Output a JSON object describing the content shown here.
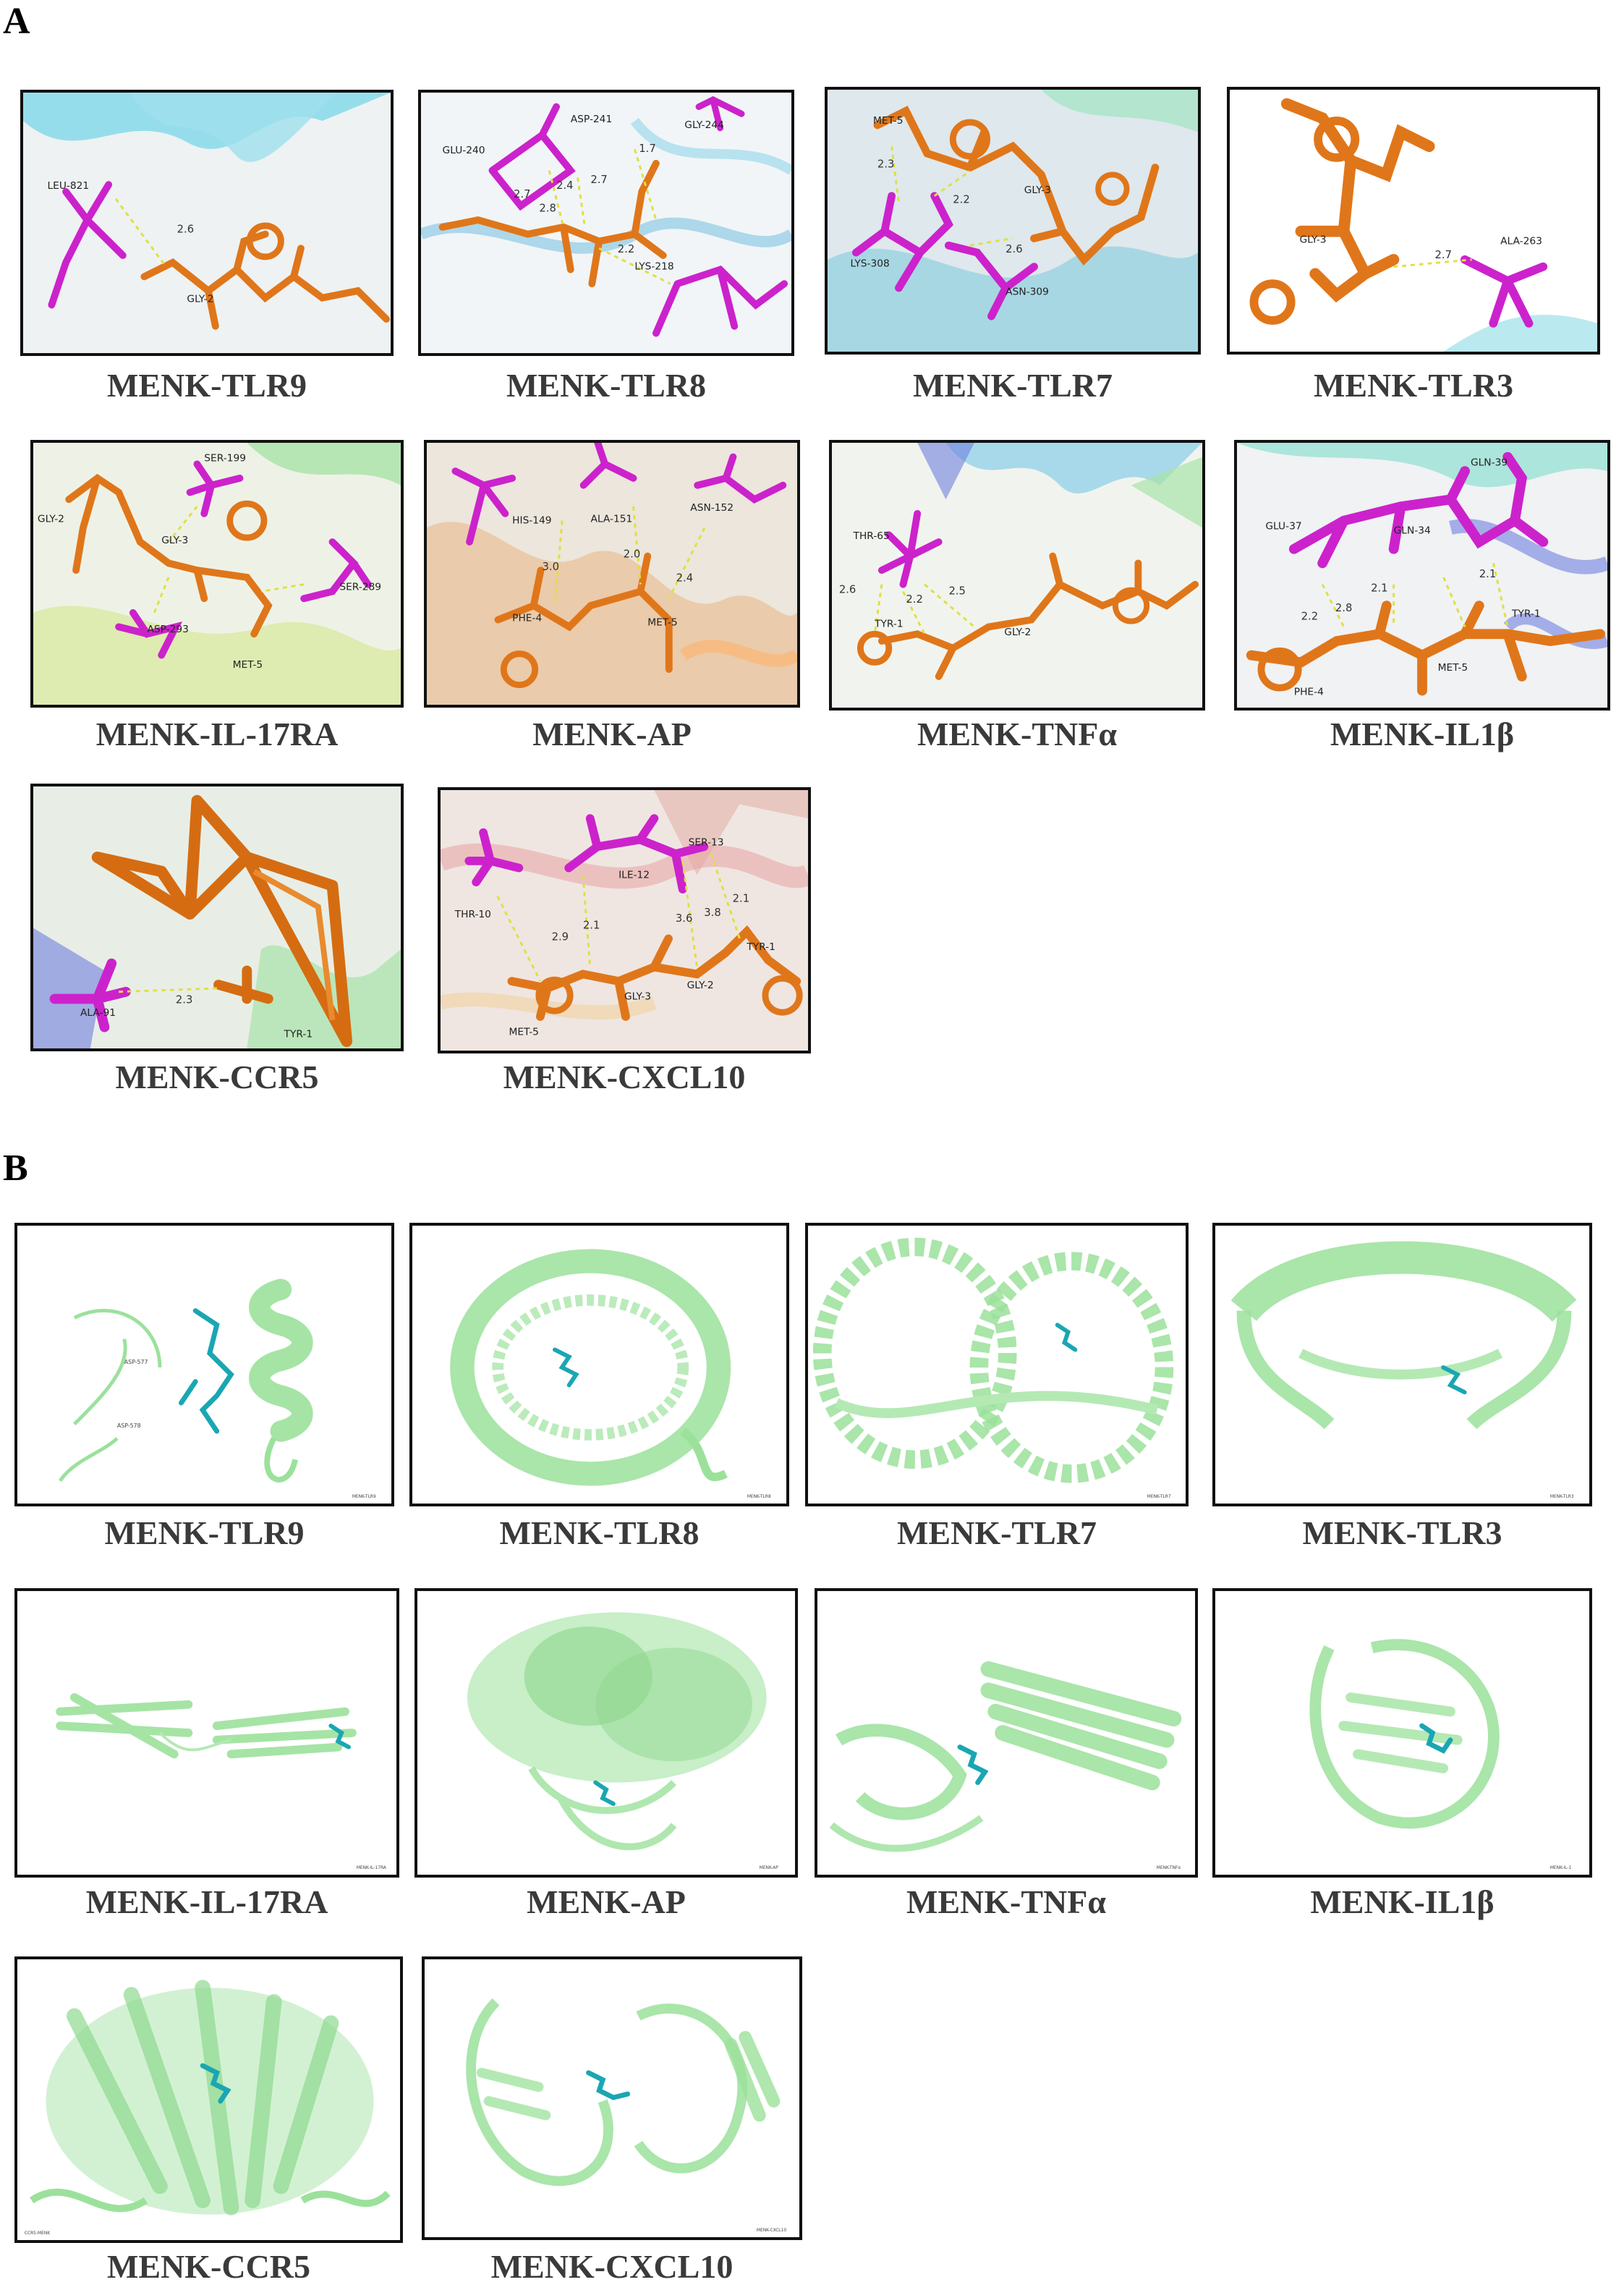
{
  "panel_labels": {
    "a": "A",
    "b": "B"
  },
  "colors": {
    "ligand_orange": "#e0761a",
    "residue_magenta": "#cc22cc",
    "hbond_yellow": "#e0e040",
    "ribbon_green": "#9be19b",
    "ligand_cyan": "#1aa6b3"
  },
  "panel_a": [
    {
      "caption": "MENK-TLR9",
      "residues": [
        "LEU-821",
        "GLY-2"
      ],
      "distances": [
        "2.6"
      ]
    },
    {
      "caption": "MENK-TLR8",
      "residues": [
        "ASP-241",
        "GLY-244",
        "GLU-240",
        "LYS-218"
      ],
      "distances": [
        "1.7",
        "2.7",
        "2.4",
        "2.7",
        "2.8",
        "2.2"
      ]
    },
    {
      "caption": "MENK-TLR7",
      "residues": [
        "MET-5",
        "GLY-3",
        "LYS-308",
        "ASN-309"
      ],
      "distances": [
        "2.3",
        "2.2",
        "2.6"
      ]
    },
    {
      "caption": "MENK-TLR3",
      "residues": [
        "GLY-3",
        "ALA-263"
      ],
      "distances": [
        "2.7"
      ]
    },
    {
      "caption": "MENK-IL-17RA",
      "residues": [
        "SER-199",
        "GLY-2",
        "GLY-3",
        "SER-289",
        "ASP-293",
        "MET-5"
      ],
      "distances": []
    },
    {
      "caption": "MENK-AP",
      "residues": [
        "HIS-149",
        "ALA-151",
        "ASN-152",
        "PHE-4",
        "MET-5"
      ],
      "distances": [
        "3.0",
        "2.0",
        "2.4"
      ]
    },
    {
      "caption": "MENK-TNFα",
      "residues": [
        "THR-65",
        "TYR-1",
        "GLY-2"
      ],
      "distances": [
        "2.6",
        "2.2",
        "2.5"
      ]
    },
    {
      "caption": "MENK-IL1β",
      "residues": [
        "GLN-39",
        "GLU-37",
        "GLN-34",
        "TYR-1",
        "MET-5",
        "PHE-4"
      ],
      "distances": [
        "2.1",
        "2.1",
        "2.8",
        "2.2"
      ]
    },
    {
      "caption": "MENK-CCR5",
      "residues": [
        "ALA-91",
        "TYR-1"
      ],
      "distances": [
        "2.3"
      ]
    },
    {
      "caption": "MENK-CXCL10",
      "residues": [
        "SER-13",
        "ILE-12",
        "THR-10",
        "TYR-1",
        "MET-5",
        "GLY-3",
        "GLY-2"
      ],
      "distances": [
        "2.1",
        "3.6",
        "3.8",
        "2.9",
        "2.1"
      ]
    }
  ],
  "panel_b": [
    {
      "caption": "MENK-TLR9"
    },
    {
      "caption": "MENK-TLR8"
    },
    {
      "caption": "MENK-TLR7"
    },
    {
      "caption": "MENK-TLR3"
    },
    {
      "caption": "MENK-IL-17RA"
    },
    {
      "caption": "MENK-AP"
    },
    {
      "caption": "MENK-TNFα"
    },
    {
      "caption": "MENK-IL1β"
    },
    {
      "caption": "MENK-CCR5"
    },
    {
      "caption": "MENK-CXCL10"
    }
  ]
}
